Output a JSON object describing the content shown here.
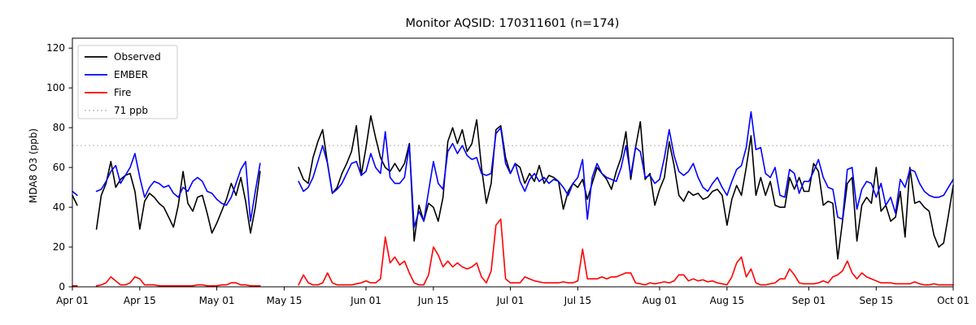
{
  "figure": {
    "title": "Monitor AQSID: 170311601 (n=174)",
    "ylabel": "MDA8 O3 (ppb)",
    "background": "#ffffff",
    "spine_color": "#000000"
  },
  "chart_data": {
    "type": "line",
    "title": "Monitor AQSID: 170311601 (n=174)",
    "xlabel": "",
    "ylabel": "MDA8 O3 (ppb)",
    "ylim": [
      0,
      125
    ],
    "yticks": [
      0,
      20,
      40,
      60,
      80,
      100,
      120
    ],
    "grid": false,
    "legend_position": "upper left",
    "start_date": "Apr 01",
    "end_date": "Oct 01",
    "days_span": 183,
    "n_points": 174,
    "x_tick_days": [
      0,
      14,
      30,
      44,
      61,
      75,
      91,
      105,
      122,
      136,
      153,
      167,
      183
    ],
    "x_tick_labels": [
      "Apr 01",
      "Apr 15",
      "May 01",
      "May 15",
      "Jun 01",
      "Jun 15",
      "Jul 01",
      "Jul 15",
      "Aug 01",
      "Aug 15",
      "Sep 01",
      "Sep 15",
      "Oct 01"
    ],
    "threshold": {
      "label": "71 ppb",
      "value": 71,
      "color": "#c8c8c8",
      "style": "dotted"
    },
    "legend": [
      {
        "label": "Observed",
        "color": "#000000",
        "dash": ""
      },
      {
        "label": "EMBER",
        "color": "#0000ff",
        "dash": ""
      },
      {
        "label": "Fire",
        "color": "#ff0000",
        "dash": ""
      },
      {
        "label": "71 ppb",
        "color": "#c8c8c8",
        "dash": "2 3"
      }
    ],
    "series": [
      {
        "name": "Observed",
        "color": "#000000",
        "values": [
          46,
          41,
          null,
          null,
          null,
          29,
          46,
          52,
          63,
          50,
          54,
          56,
          57,
          48,
          29,
          43,
          47,
          45,
          42,
          40,
          35,
          30,
          41,
          58,
          42,
          38,
          45,
          46,
          37,
          27,
          32,
          38,
          44,
          52,
          46,
          55,
          43,
          27,
          40,
          58,
          null,
          null,
          null,
          null,
          null,
          null,
          null,
          60,
          54,
          52,
          65,
          73,
          79,
          62,
          47,
          50,
          57,
          62,
          68,
          81,
          56,
          70,
          86,
          75,
          65,
          60,
          58,
          62,
          58,
          62,
          72,
          23,
          41,
          33,
          42,
          40,
          33,
          45,
          73,
          80,
          72,
          79,
          68,
          72,
          84,
          60,
          42,
          52,
          79,
          81,
          65,
          57,
          62,
          60,
          52,
          57,
          53,
          61,
          52,
          56,
          55,
          53,
          39,
          48,
          52,
          50,
          54,
          44,
          52,
          60,
          57,
          54,
          49,
          58,
          65,
          78,
          54,
          70,
          83,
          54,
          57,
          41,
          49,
          55,
          73,
          61,
          46,
          43,
          48,
          46,
          47,
          44,
          45,
          48,
          49,
          46,
          31,
          44,
          51,
          46,
          60,
          76,
          46,
          55,
          46,
          53,
          41,
          40,
          40,
          55,
          49,
          55,
          48,
          48,
          62,
          58,
          41,
          43,
          42,
          14,
          33,
          52,
          55,
          23,
          41,
          45,
          42,
          60,
          38,
          41,
          33,
          35,
          48,
          25,
          60,
          42,
          43,
          40,
          38,
          26,
          20,
          22,
          36,
          51
        ]
      },
      {
        "name": "EMBER",
        "color": "#0000ff",
        "values": [
          48,
          46,
          null,
          null,
          null,
          48,
          49,
          53,
          58,
          61,
          52,
          56,
          60,
          67,
          55,
          45,
          50,
          53,
          52,
          50,
          51,
          47,
          45,
          50,
          48,
          53,
          55,
          53,
          48,
          47,
          44,
          42,
          41,
          45,
          52,
          59,
          63,
          33,
          48,
          62,
          null,
          null,
          null,
          null,
          null,
          null,
          null,
          53,
          48,
          50,
          55,
          63,
          71,
          62,
          47,
          49,
          52,
          57,
          62,
          63,
          56,
          58,
          67,
          60,
          57,
          78,
          55,
          52,
          52,
          55,
          71,
          30,
          38,
          33,
          48,
          63,
          52,
          49,
          68,
          72,
          67,
          71,
          66,
          64,
          65,
          57,
          56,
          57,
          77,
          80,
          62,
          57,
          62,
          53,
          48,
          54,
          57,
          53,
          55,
          52,
          54,
          53,
          50,
          46,
          52,
          55,
          64,
          34,
          55,
          62,
          57,
          55,
          54,
          53,
          60,
          71,
          56,
          70,
          68,
          55,
          56,
          52,
          54,
          65,
          79,
          66,
          58,
          56,
          58,
          62,
          55,
          50,
          48,
          52,
          55,
          50,
          46,
          53,
          59,
          61,
          70,
          88,
          69,
          70,
          57,
          55,
          60,
          46,
          45,
          59,
          57,
          47,
          53,
          53,
          58,
          64,
          55,
          50,
          49,
          35,
          34,
          59,
          60,
          39,
          49,
          53,
          52,
          45,
          52,
          41,
          45,
          37,
          54,
          50,
          59,
          58,
          52,
          48,
          46,
          45,
          45,
          46,
          50,
          54
        ]
      },
      {
        "name": "Fire",
        "color": "#ff0000",
        "values": [
          0.5,
          0.5,
          null,
          null,
          null,
          0.5,
          1,
          2,
          5,
          3,
          1,
          1,
          2,
          5,
          4,
          1,
          1,
          1,
          0.5,
          0.5,
          0.5,
          0.5,
          0.5,
          0.5,
          0.5,
          0.5,
          1,
          1,
          0.5,
          0.5,
          0.5,
          1,
          1,
          2,
          2,
          1,
          1,
          0.5,
          0.5,
          0.5,
          null,
          null,
          null,
          null,
          null,
          null,
          null,
          1,
          6,
          2,
          1,
          1,
          2,
          7,
          2,
          1,
          1,
          1,
          1,
          1.5,
          2,
          3,
          2,
          2,
          4,
          25,
          12,
          15,
          11,
          13,
          7,
          2,
          1,
          1,
          6,
          20,
          16,
          10,
          13,
          10,
          12,
          10,
          9,
          10,
          12,
          5,
          2,
          8,
          31,
          34,
          4,
          2,
          2,
          2,
          5,
          4,
          3,
          2.5,
          2,
          2,
          2,
          2,
          2.5,
          2,
          2,
          3,
          19,
          4,
          4,
          4,
          5,
          4,
          5,
          5,
          6,
          7,
          7,
          2,
          1.5,
          1,
          2,
          1.5,
          2,
          2.5,
          2,
          3,
          6,
          6,
          3,
          4,
          3,
          3.5,
          2.5,
          3,
          2,
          1.5,
          1,
          5,
          12,
          15,
          5,
          9,
          2,
          1,
          1,
          1.5,
          2,
          4,
          4,
          9,
          6,
          2,
          1.5,
          1.5,
          1.5,
          2,
          3,
          2,
          5,
          6,
          8,
          13,
          7,
          4,
          7,
          5,
          4,
          3,
          2,
          2,
          2,
          1.5,
          1.5,
          1.5,
          1.5,
          2.5,
          1.5,
          1,
          1,
          1.5,
          1,
          1,
          1,
          1
        ]
      }
    ]
  }
}
